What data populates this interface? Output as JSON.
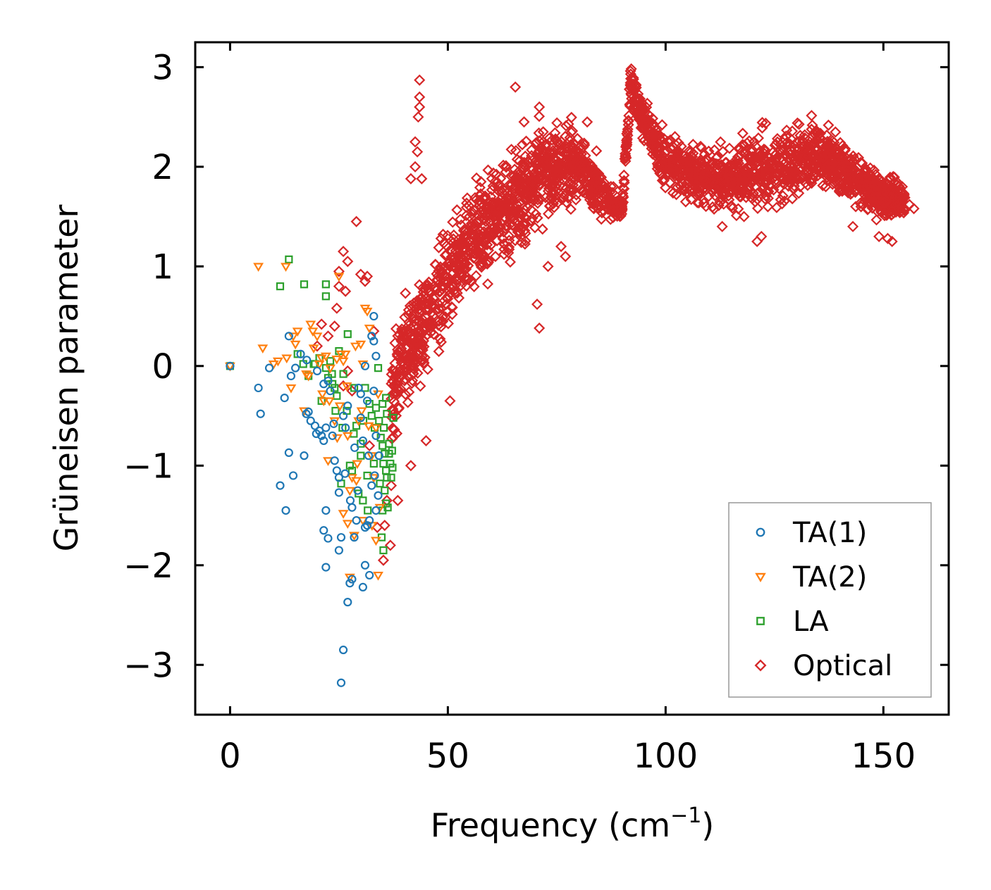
{
  "chart_data": {
    "type": "scatter",
    "title": "",
    "xlabel": "Frequency (cm",
    "xlabel_sup": "−1",
    "xlabel_end": ")",
    "ylabel": "Grüneisen parameter",
    "xlim": [
      -8,
      165
    ],
    "ylim": [
      -3.5,
      3.25
    ],
    "xticks": [
      0,
      50,
      100,
      150
    ],
    "xtick_labels": [
      "0",
      "50",
      "100",
      "150"
    ],
    "yticks": [
      -3,
      -2,
      -1,
      0,
      1,
      2,
      3
    ],
    "ytick_labels": [
      "−3",
      "−2",
      "−1",
      "0",
      "1",
      "2",
      "3"
    ],
    "legend_position": "lower-right",
    "series": [
      {
        "name": "TA(1)",
        "marker": "circle",
        "color": "#1f77b4",
        "points": [
          [
            0,
            0
          ],
          [
            6.5,
            -0.22
          ],
          [
            7,
            -0.48
          ],
          [
            9,
            -0.02
          ],
          [
            12.5,
            -0.32
          ],
          [
            13.5,
            0.3
          ],
          [
            14,
            -0.1
          ],
          [
            15,
            -0.02
          ],
          [
            13.5,
            -0.87
          ],
          [
            14.5,
            -1.1
          ],
          [
            11.5,
            -1.2
          ],
          [
            12.8,
            -1.45
          ],
          [
            17,
            -0.9
          ],
          [
            17.5,
            -0.48
          ],
          [
            18,
            -0.46
          ],
          [
            18.5,
            -0.55
          ],
          [
            19.5,
            -0.6
          ],
          [
            20,
            -0.05
          ],
          [
            20.5,
            -0.65
          ],
          [
            21,
            -0.7
          ],
          [
            21.5,
            -0.75
          ],
          [
            22,
            -0.62
          ],
          [
            21.5,
            -0.18
          ],
          [
            22.5,
            -0.15
          ],
          [
            23,
            -0.25
          ],
          [
            23.5,
            -0.7
          ],
          [
            22,
            -1.45
          ],
          [
            22.5,
            -1.73
          ],
          [
            21.5,
            -1.65
          ],
          [
            22,
            -2.02
          ],
          [
            24,
            -0.95
          ],
          [
            24.5,
            -1.05
          ],
          [
            25,
            -1.12
          ],
          [
            25,
            -1.27
          ],
          [
            25.5,
            -1.72
          ],
          [
            25,
            -1.85
          ],
          [
            26,
            -0.5
          ],
          [
            26.5,
            -0.62
          ],
          [
            27,
            -0.4
          ],
          [
            26,
            -2.85
          ],
          [
            25.5,
            -3.18
          ],
          [
            27,
            -2.37
          ],
          [
            27.5,
            -2.18
          ],
          [
            28,
            -2.14
          ],
          [
            28,
            -1.42
          ],
          [
            28.5,
            -1.72
          ],
          [
            29,
            -1.55
          ],
          [
            29.5,
            -0.22
          ],
          [
            30,
            -0.28
          ],
          [
            30,
            -0.52
          ],
          [
            30.5,
            -0.75
          ],
          [
            30.5,
            -2.22
          ],
          [
            31,
            -2.0
          ],
          [
            31.5,
            -1.6
          ],
          [
            32,
            -1.55
          ],
          [
            32,
            -2.1
          ],
          [
            32.5,
            0.3
          ],
          [
            33,
            0.5
          ],
          [
            33,
            0.25
          ],
          [
            33.5,
            0.1
          ],
          [
            33,
            -0.25
          ],
          [
            33.5,
            -0.7
          ],
          [
            33.2,
            -1.1
          ],
          [
            33.5,
            -1.45
          ],
          [
            32.5,
            -1.2
          ],
          [
            31,
            0.0
          ],
          [
            31.5,
            -0.35
          ],
          [
            34,
            -1.3
          ],
          [
            34.2,
            -0.9
          ],
          [
            31,
            -1.62
          ],
          [
            29.3,
            -1.25
          ],
          [
            28.6,
            -0.82
          ],
          [
            19.8,
            -0.68
          ],
          [
            17.6,
            0.06
          ],
          [
            16.2,
            0.12
          ],
          [
            27.6,
            -1.35
          ],
          [
            31.8,
            -0.9
          ],
          [
            26.4,
            -1.08
          ],
          [
            23.8,
            -0.58
          ]
        ]
      },
      {
        "name": "TA(2)",
        "marker": "triangle-down",
        "color": "#ff7f0e",
        "points": [
          [
            0,
            0
          ],
          [
            6.5,
            1.0
          ],
          [
            7.5,
            0.18
          ],
          [
            10,
            0.02
          ],
          [
            11,
            0.05
          ],
          [
            12.8,
            1.0
          ],
          [
            13,
            0.08
          ],
          [
            14,
            -0.22
          ],
          [
            14.5,
            0.3
          ],
          [
            15,
            0.22
          ],
          [
            15.5,
            0.35
          ],
          [
            17,
            -0.45
          ],
          [
            17.5,
            -0.08
          ],
          [
            18,
            -0.1
          ],
          [
            18.5,
            0.42
          ],
          [
            19,
            0.35
          ],
          [
            20,
            0.3
          ],
          [
            20.5,
            0.02
          ],
          [
            21,
            0.08
          ],
          [
            21.5,
            -0.35
          ],
          [
            22,
            0.1
          ],
          [
            22.5,
            -0.95
          ],
          [
            23,
            -0.02
          ],
          [
            24,
            -0.55
          ],
          [
            24.5,
            0.07
          ],
          [
            25,
            0.9
          ],
          [
            25.5,
            0.12
          ],
          [
            26,
            0.05
          ],
          [
            26.5,
            0.12
          ],
          [
            27,
            -0.7
          ],
          [
            27.5,
            -1.25
          ],
          [
            26,
            -1.48
          ],
          [
            27,
            -1.58
          ],
          [
            27.5,
            -2.12
          ],
          [
            28,
            -1.12
          ],
          [
            28.5,
            -1.7
          ],
          [
            29,
            -1.15
          ],
          [
            29.5,
            -0.55
          ],
          [
            30,
            0.22
          ],
          [
            30.5,
            0.02
          ],
          [
            30.5,
            -1.55
          ],
          [
            31,
            0.58
          ],
          [
            31.5,
            0.55
          ],
          [
            32,
            0.38
          ],
          [
            32.5,
            -0.9
          ],
          [
            33,
            -1.12
          ],
          [
            33.5,
            -1.75
          ],
          [
            34,
            -2.1
          ],
          [
            34,
            -0.28
          ],
          [
            33.5,
            -0.62
          ],
          [
            31.8,
            -0.6
          ],
          [
            30.2,
            -0.45
          ],
          [
            29.2,
            -0.98
          ],
          [
            32.6,
            -1.6
          ],
          [
            34.4,
            -1.42
          ],
          [
            25.2,
            -0.4
          ],
          [
            24.6,
            -0.72
          ],
          [
            22.8,
            -0.35
          ],
          [
            26.8,
            -0.2
          ],
          [
            28.8,
            0.2
          ],
          [
            21.2,
            -0.28
          ],
          [
            19.2,
            0.18
          ]
        ]
      },
      {
        "name": "LA",
        "marker": "square",
        "color": "#2ca02c",
        "points": [
          [
            0,
            0
          ],
          [
            11.5,
            0.8
          ],
          [
            13.5,
            1.07
          ],
          [
            17,
            0.82
          ],
          [
            22,
            0.82
          ],
          [
            22,
            0.7
          ],
          [
            15.5,
            0.12
          ],
          [
            18,
            -0.1
          ],
          [
            19.5,
            0.02
          ],
          [
            20.5,
            0.08
          ],
          [
            21,
            -0.35
          ],
          [
            22,
            -0.02
          ],
          [
            22.5,
            -0.12
          ],
          [
            23,
            0.05
          ],
          [
            23.5,
            -0.18
          ],
          [
            24,
            -0.22
          ],
          [
            24.5,
            -0.3
          ],
          [
            25,
            0.15
          ],
          [
            25.5,
            -1.18
          ],
          [
            26,
            -0.08
          ],
          [
            27,
            0.32
          ],
          [
            27.5,
            -1.0
          ],
          [
            28,
            -1.05
          ],
          [
            28.5,
            -0.22
          ],
          [
            29,
            -0.6
          ],
          [
            29.5,
            -1.28
          ],
          [
            30,
            -0.78
          ],
          [
            30,
            -0.9
          ],
          [
            30.5,
            -1.35
          ],
          [
            31,
            -0.22
          ],
          [
            31.5,
            -1.1
          ],
          [
            32,
            -0.38
          ],
          [
            32.5,
            -0.5
          ],
          [
            33,
            -0.98
          ],
          [
            33.5,
            -0.42
          ],
          [
            34,
            -0.02
          ],
          [
            34.2,
            -0.55
          ],
          [
            34.6,
            -0.72
          ],
          [
            35,
            -0.38
          ],
          [
            35.3,
            -0.62
          ],
          [
            35,
            -0.8
          ],
          [
            35.5,
            -0.88
          ],
          [
            35.2,
            -0.98
          ],
          [
            35.8,
            -1.05
          ],
          [
            36,
            -1.12
          ],
          [
            36.5,
            -0.88
          ],
          [
            36.8,
            -0.98
          ],
          [
            37,
            -1.12
          ],
          [
            37.2,
            -0.85
          ],
          [
            36.5,
            -0.78
          ],
          [
            36,
            -0.48
          ],
          [
            35.8,
            -0.32
          ],
          [
            35.5,
            -1.25
          ],
          [
            35.8,
            -1.38
          ],
          [
            35,
            -1.45
          ],
          [
            34.8,
            -1.72
          ],
          [
            35.2,
            -1.85
          ],
          [
            37.5,
            -0.52
          ],
          [
            37.3,
            -1.02
          ],
          [
            36.2,
            -1.42
          ],
          [
            34.4,
            -1.18
          ],
          [
            33.2,
            -0.62
          ],
          [
            31.6,
            -1.45
          ],
          [
            30.6,
            -0.55
          ],
          [
            28.4,
            -0.68
          ],
          [
            26.8,
            -0.45
          ],
          [
            25.8,
            -0.62
          ],
          [
            24.2,
            -0.45
          ],
          [
            23.4,
            -0.08
          ],
          [
            19.2,
            0.02
          ],
          [
            16.8,
            0.02
          ]
        ]
      },
      {
        "name": "Optical",
        "marker": "diamond",
        "color": "#d62728",
        "points": []
      }
    ],
    "optical_trend": {
      "x": [
        37,
        40,
        45,
        50,
        55,
        60,
        65,
        70,
        75,
        80,
        85,
        88,
        90,
        92,
        93,
        95,
        98,
        100,
        105,
        110,
        115,
        120,
        125,
        130,
        135,
        140,
        145,
        150,
        155
      ],
      "y": [
        -0.3,
        0.1,
        0.45,
        0.9,
        1.2,
        1.45,
        1.65,
        1.85,
        2.0,
        2.05,
        1.75,
        1.6,
        1.58,
        2.8,
        2.7,
        2.45,
        2.2,
        2.05,
        1.95,
        1.9,
        1.85,
        1.95,
        2.0,
        2.05,
        2.15,
        2.0,
        1.85,
        1.7,
        1.65
      ],
      "spread": [
        0.4,
        0.45,
        0.45,
        0.45,
        0.45,
        0.4,
        0.4,
        0.4,
        0.35,
        0.3,
        0.25,
        0.1,
        0.08,
        0.15,
        0.15,
        0.15,
        0.2,
        0.25,
        0.25,
        0.25,
        0.25,
        0.3,
        0.3,
        0.3,
        0.25,
        0.25,
        0.2,
        0.2,
        0.15
      ],
      "count": 2600
    },
    "optical_outliers": [
      [
        43.5,
        2.87
      ],
      [
        43.5,
        2.7
      ],
      [
        43.5,
        2.6
      ],
      [
        43.2,
        2.5
      ],
      [
        42.5,
        2.25
      ],
      [
        43,
        2.15
      ],
      [
        42.5,
        2.0
      ],
      [
        41.5,
        1.88
      ],
      [
        44,
        1.88
      ],
      [
        29,
        1.45
      ],
      [
        26,
        1.15
      ],
      [
        27,
        1.05
      ],
      [
        25,
        0.95
      ],
      [
        26.5,
        0.75
      ],
      [
        25,
        0.8
      ],
      [
        24.5,
        0.58
      ],
      [
        31,
        0.85
      ],
      [
        31.5,
        0.9
      ],
      [
        30,
        0.92
      ],
      [
        33,
        0.35
      ],
      [
        24,
        0.4
      ],
      [
        22.5,
        0.3
      ],
      [
        21,
        0.42
      ],
      [
        20,
        0.2
      ],
      [
        27,
        -0.05
      ],
      [
        26,
        -0.2
      ],
      [
        28,
        -0.25
      ],
      [
        32,
        -0.8
      ],
      [
        36,
        -1.35
      ],
      [
        37,
        -1.2
      ],
      [
        35.5,
        -1.6
      ],
      [
        36.8,
        -1.8
      ],
      [
        35.2,
        -1.95
      ],
      [
        33.8,
        -1.62
      ],
      [
        38.5,
        -1.35
      ],
      [
        41.5,
        -1.0
      ],
      [
        45,
        -0.75
      ],
      [
        50.5,
        -0.35
      ],
      [
        65.5,
        2.8
      ],
      [
        71,
        2.6
      ],
      [
        70.5,
        0.62
      ],
      [
        71,
        0.38
      ],
      [
        67.5,
        2.45
      ],
      [
        73,
        1.0
      ],
      [
        76,
        1.2
      ],
      [
        77,
        1.1
      ],
      [
        82,
        2.45
      ],
      [
        88,
        1.8
      ],
      [
        113,
        1.4
      ],
      [
        118,
        1.5
      ],
      [
        122,
        1.3
      ],
      [
        121,
        1.25
      ],
      [
        143,
        1.4
      ],
      [
        149,
        1.3
      ],
      [
        151,
        1.28
      ],
      [
        152,
        1.25
      ],
      [
        156,
        1.62
      ],
      [
        157,
        1.58
      ],
      [
        154,
        1.55
      ]
    ]
  }
}
